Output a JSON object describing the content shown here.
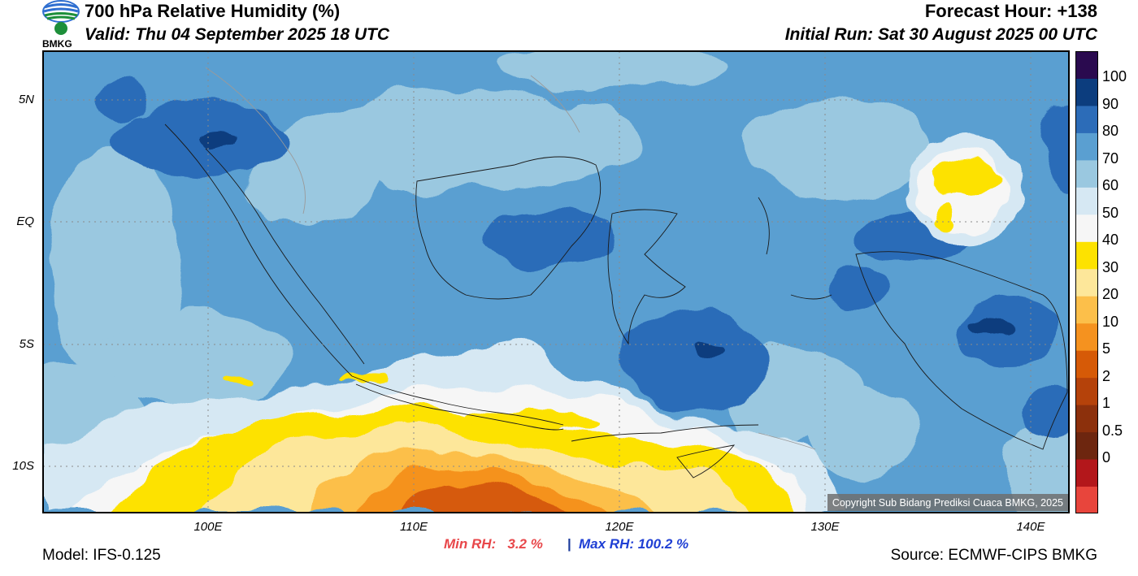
{
  "header": {
    "title": "700 hPa Relative Humidity (%)",
    "valid": "Valid: Thu 04 September 2025 18 UTC",
    "forecast_hour": "Forecast Hour: +138",
    "initial_run": "Initial Run: Sat 30 August 2025 00 UTC",
    "logo_text": "BMKG"
  },
  "map": {
    "lat_labels": [
      "5N",
      "EQ",
      "5S",
      "10S"
    ],
    "lon_labels": [
      "100E",
      "110E",
      "120E",
      "130E",
      "140E"
    ],
    "copyright": "Copyright Sub Bidang Prediksi Cuaca BMKG, 2025"
  },
  "stats": {
    "min_label": "Min RH:   3.2 %",
    "separator": "|",
    "max_label": "Max RH: 100.2 %"
  },
  "footer": {
    "model": "Model: IFS-0.125",
    "source": "Source: ECMWF-CIPS BMKG"
  },
  "colorbar": {
    "labels": [
      "100",
      "90",
      "80",
      "70",
      "60",
      "50",
      "40",
      "30",
      "20",
      "10",
      "5",
      "2",
      "1",
      "0.5",
      "0"
    ],
    "colors": [
      "#e8453c",
      "#b3171b",
      "#6d260f",
      "#8c300c",
      "#b5420a",
      "#d65a07",
      "#f5921f",
      "#fcbf4a",
      "#fde79a",
      "#fde200",
      "#f6f6f6",
      "#d6e8f3",
      "#9ac8e0",
      "#5a9fd1",
      "#2c6cb8",
      "#0c3d7e",
      "#2a0a4f"
    ],
    "colors_order": "bottom-to-top"
  },
  "palette": {
    "sea_base": "#5a9fd1",
    "humid": "#2c6cb8",
    "very_humid": "#0c3d7e",
    "moderate": "#9ac8e0",
    "light": "#d6e8f3",
    "white": "#f6f6f6",
    "yellow": "#fde200",
    "light_orange": "#fde79a",
    "mid_orange": "#fcbf4a",
    "orange": "#f5921f",
    "dark_orange": "#d65a07"
  }
}
